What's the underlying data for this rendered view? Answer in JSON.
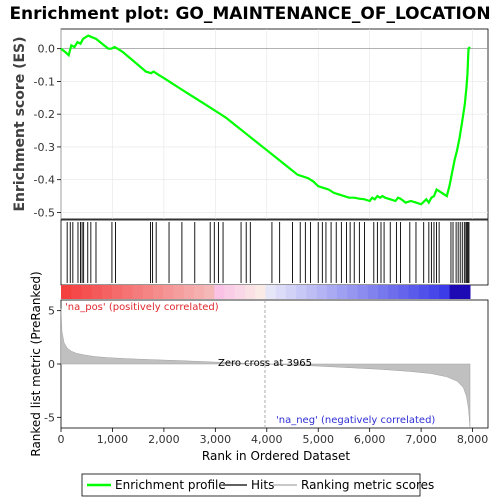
{
  "chart_data": {
    "type": "line",
    "title": "Enrichment plot: GO_MAINTENANCE_OF_LOCATION",
    "es_panel": {
      "ylabel": "Enrichment score (ES)",
      "ylim": [
        -0.52,
        0.06
      ],
      "yticks": [
        0.0,
        -0.1,
        -0.2,
        -0.3,
        -0.4,
        -0.5
      ],
      "ytick_labels": [
        "0.0",
        "-0.1",
        "-0.2",
        "-0.3",
        "-0.4",
        "-0.5"
      ],
      "series": [
        {
          "name": "Enrichment profile",
          "color": "#00ff00",
          "x": [
            0,
            80,
            150,
            200,
            260,
            320,
            380,
            430,
            480,
            530,
            600,
            680,
            760,
            840,
            920,
            980,
            1040,
            1100,
            1200,
            1350,
            1500,
            1650,
            1750,
            1800,
            1900,
            2000,
            2150,
            2300,
            2450,
            2600,
            2750,
            2900,
            3050,
            3200,
            3400,
            3600,
            3800,
            4000,
            4200,
            4400,
            4600,
            4700,
            4800,
            4900,
            5000,
            5100,
            5200,
            5300,
            5400,
            5500,
            5600,
            5700,
            5800,
            5900,
            6000,
            6050,
            6100,
            6150,
            6200,
            6250,
            6300,
            6400,
            6500,
            6550,
            6600,
            6700,
            6800,
            6900,
            7000,
            7100,
            7150,
            7200,
            7250,
            7300,
            7400,
            7500,
            7550,
            7600,
            7650,
            7700,
            7750,
            7800,
            7850,
            7880,
            7900,
            7920,
            7950
          ],
          "y": [
            0.0,
            -0.01,
            -0.02,
            0.01,
            0.005,
            0.02,
            0.015,
            0.03,
            0.035,
            0.04,
            0.035,
            0.03,
            0.02,
            0.01,
            0.0,
            0.0,
            0.005,
            0.0,
            -0.01,
            -0.03,
            -0.05,
            -0.07,
            -0.075,
            -0.07,
            -0.08,
            -0.09,
            -0.105,
            -0.12,
            -0.135,
            -0.15,
            -0.165,
            -0.18,
            -0.195,
            -0.21,
            -0.235,
            -0.26,
            -0.285,
            -0.31,
            -0.335,
            -0.36,
            -0.385,
            -0.39,
            -0.395,
            -0.405,
            -0.42,
            -0.425,
            -0.43,
            -0.44,
            -0.445,
            -0.45,
            -0.455,
            -0.455,
            -0.458,
            -0.46,
            -0.465,
            -0.455,
            -0.46,
            -0.45,
            -0.455,
            -0.45,
            -0.455,
            -0.46,
            -0.465,
            -0.455,
            -0.458,
            -0.47,
            -0.465,
            -0.47,
            -0.475,
            -0.46,
            -0.47,
            -0.455,
            -0.45,
            -0.43,
            -0.44,
            -0.45,
            -0.42,
            -0.38,
            -0.34,
            -0.31,
            -0.27,
            -0.22,
            -0.17,
            -0.12,
            -0.08,
            0.0,
            0.005
          ]
        }
      ]
    },
    "hits": [
      120,
      180,
      230,
      330,
      380,
      410,
      440,
      520,
      580,
      680,
      990,
      1060,
      1740,
      1780,
      1850,
      2100,
      2350,
      2600,
      2900,
      2980,
      3060,
      3150,
      3500,
      3600,
      3680,
      4100,
      4250,
      4500,
      4650,
      4750,
      4850,
      5000,
      5080,
      5150,
      5250,
      5350,
      5450,
      5550,
      5620,
      5700,
      5800,
      5900,
      6080,
      6150,
      6220,
      6280,
      6400,
      6520,
      6600,
      6780,
      6900,
      7050,
      7150,
      7200,
      7250,
      7300,
      7350,
      7580,
      7620,
      7680,
      7720,
      7760,
      7800,
      7840,
      7870,
      7890,
      7910,
      7930
    ],
    "ranked_panel": {
      "ylabel": "Ranked list metric (PreRanked)",
      "ylim": [
        -6,
        6
      ],
      "yticks": [
        5,
        0,
        -5
      ],
      "ytick_labels": [
        "5",
        "0",
        "-5"
      ],
      "zero_cross_label": "Zero cross at 3965",
      "zero_cross": 3965,
      "pos_label": "'na_pos' (positively correlated)",
      "neg_label": "'na_neg' (negatively correlated)",
      "metric_curve": {
        "x": [
          0,
          20,
          60,
          120,
          200,
          300,
          450,
          650,
          900,
          1300,
          1800,
          2400,
          3000,
          3500,
          3965,
          4500,
          5000,
          5600,
          6200,
          6800,
          7200,
          7500,
          7700,
          7820,
          7880,
          7920,
          7950
        ],
        "y": [
          5.2,
          3.0,
          2.0,
          1.5,
          1.2,
          1.0,
          0.85,
          0.7,
          0.6,
          0.5,
          0.4,
          0.3,
          0.18,
          0.08,
          0.0,
          -0.1,
          -0.2,
          -0.35,
          -0.5,
          -0.7,
          -0.9,
          -1.2,
          -1.6,
          -2.2,
          -3.0,
          -4.2,
          -6.0
        ]
      }
    },
    "xaxis": {
      "label": "Rank in Ordered Dataset",
      "xlim": [
        0,
        8300
      ],
      "xticks": [
        0,
        1000,
        2000,
        3000,
        4000,
        5000,
        6000,
        7000,
        8000
      ],
      "xtick_labels": [
        "0",
        "1,000",
        "2,000",
        "3,000",
        "4,000",
        "5,000",
        "6,000",
        "7,000",
        "8,000"
      ]
    },
    "legend": {
      "placement": "bottom",
      "items": [
        {
          "label": "Enrichment profile",
          "color": "#00ff00"
        },
        {
          "label": "Hits",
          "color": "#606060"
        },
        {
          "label": "Ranking metric scores",
          "color": "#c8c8c8"
        }
      ]
    }
  }
}
